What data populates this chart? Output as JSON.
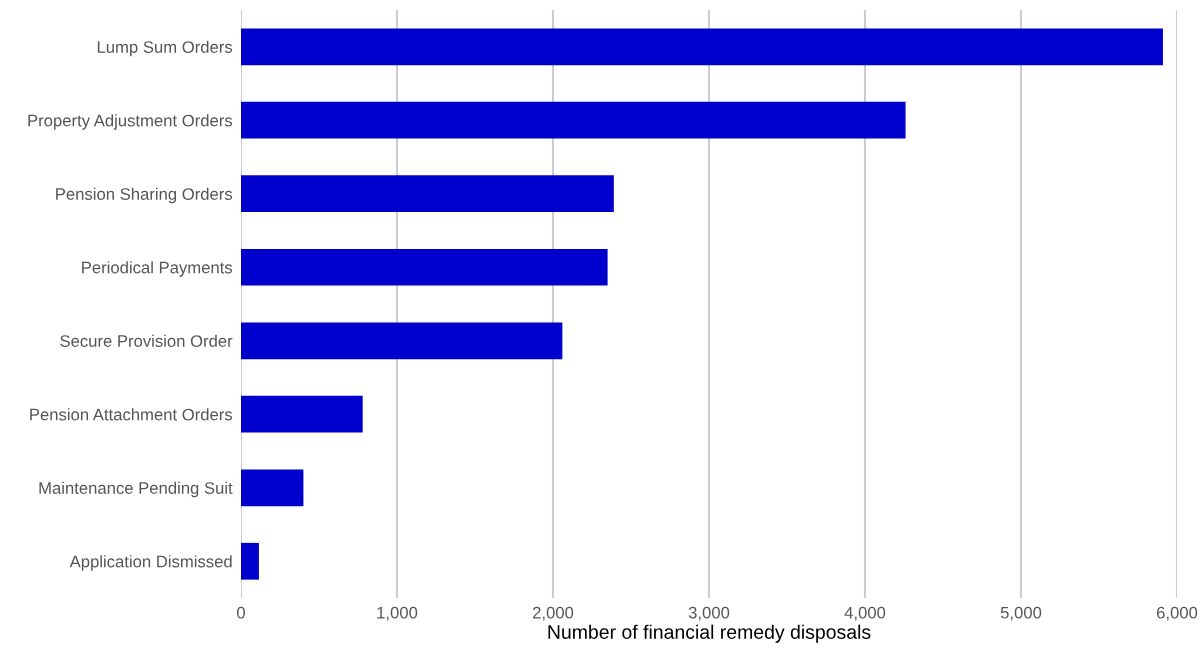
{
  "chart_data": {
    "type": "bar",
    "orientation": "horizontal",
    "xlabel": "Number of financial remedy disposals",
    "categories": [
      "Lump Sum Orders",
      "Property Adjustment Orders",
      "Pension Sharing Orders",
      "Periodical Payments",
      "Secure Provision Order",
      "Pension Attachment Orders",
      "Maintenance Pending Suit",
      "Application Dismissed"
    ],
    "values": [
      5910,
      4260,
      2390,
      2350,
      2060,
      780,
      400,
      115
    ],
    "color": "#0000cc",
    "xlim": [
      0,
      6000
    ],
    "xticks": [
      0,
      {
        "value": 1000,
        "label": "1,000"
      },
      {
        "value": 2000,
        "label": "2,000"
      },
      {
        "value": 3000,
        "label": "3,000"
      },
      {
        "value": 4000,
        "label": "4,000"
      },
      {
        "value": 5000,
        "label": "5,000"
      },
      {
        "value": 6000,
        "label": "6,000"
      }
    ],
    "grid": "x"
  }
}
